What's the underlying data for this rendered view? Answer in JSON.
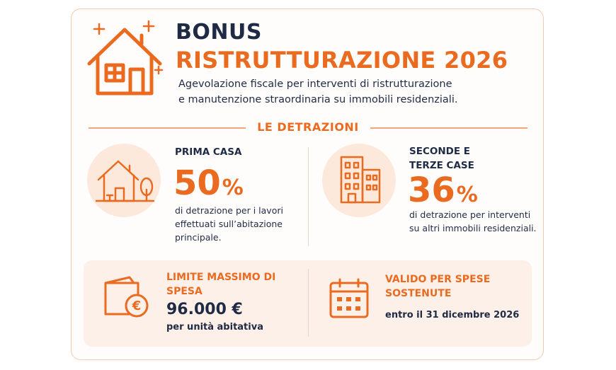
{
  "header": {
    "title_line1": "BONUS",
    "title_line2": "RISTRUTTURAZIONE 2026",
    "subtitle_line1": "Agevolazione fiscale per interventi di ristrutturazione",
    "subtitle_line2": "e manutenzione straordinaria su immobili residenziali."
  },
  "section_title": "LE DETRAZIONI",
  "deductions": [
    {
      "label": "PRIMA CASA",
      "percent": "50",
      "unit": "%",
      "description": "di detrazione per i lavori effettuati sull’abitazione principale."
    },
    {
      "label": "SECONDE E TERZE CASE",
      "percent": "36",
      "unit": "%",
      "description": "di detrazione per interventi su altri immobili residenziali."
    }
  ],
  "limit": {
    "label": "LIMITE MASSIMO DI SPESA",
    "amount": "96.000 €",
    "note": "per unità abitativa"
  },
  "validity": {
    "label": "VALIDO PER SPESE SOSTENUTE",
    "note": "entro il 31 dicembre 2026"
  }
}
